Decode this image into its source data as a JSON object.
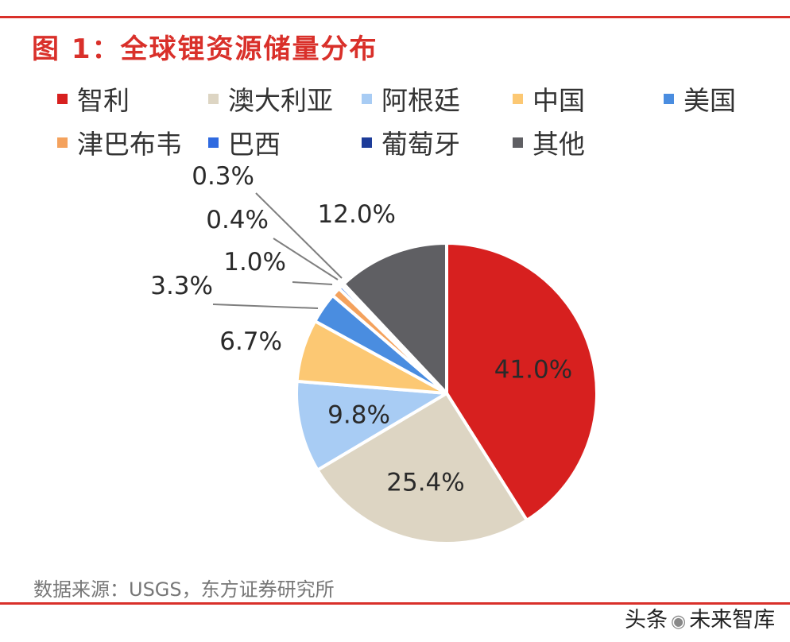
{
  "header": {
    "title": "图 1：全球锂资源储量分布"
  },
  "footer": {
    "source": "数据来源：USGS，东方证券研究所",
    "watermark_left": "头条",
    "watermark_right": "未来智库"
  },
  "colors": {
    "brand_red": "#d9302a",
    "leader_line": "#7f7f7f",
    "slice_border": "#ffffff"
  },
  "chart_data": {
    "type": "pie",
    "title": "图 1：全球锂资源储量分布",
    "unit": "%",
    "start_angle_deg": 0,
    "direction": "clockwise",
    "legend_position": "top",
    "slices": [
      {
        "label": "智利",
        "value": 41.0,
        "display": "41.0%",
        "color": "#d7201f",
        "label_inside": true
      },
      {
        "label": "澳大利亚",
        "value": 25.4,
        "display": "25.4%",
        "color": "#ddd5c3",
        "label_inside": true
      },
      {
        "label": "阿根廷",
        "value": 9.8,
        "display": "9.8%",
        "color": "#a8ccf4",
        "label_inside": true
      },
      {
        "label": "中国",
        "value": 6.7,
        "display": "6.7%",
        "color": "#fcc873",
        "label_inside": false
      },
      {
        "label": "美国",
        "value": 3.3,
        "display": "3.3%",
        "color": "#4a8de0",
        "label_inside": false
      },
      {
        "label": "津巴布韦",
        "value": 1.0,
        "display": "1.0%",
        "color": "#f4a25d",
        "label_inside": false
      },
      {
        "label": "巴西",
        "value": 0.4,
        "display": "0.4%",
        "color": "#2f6ae0",
        "label_inside": false
      },
      {
        "label": "葡萄牙",
        "value": 0.3,
        "display": "0.3%",
        "color": "#1d3c99",
        "label_inside": false
      },
      {
        "label": "其他",
        "value": 12.0,
        "display": "12.0%",
        "color": "#5f5f63",
        "label_inside": false
      }
    ]
  }
}
